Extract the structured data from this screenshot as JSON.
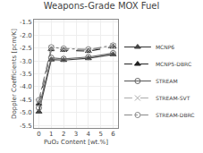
{
  "chart_data": {
    "type": "line",
    "title": "Weapons-Grade MOX Fuel",
    "xlabel": "PuO₂ Content [wt.%]",
    "ylabel": "Doppler Coefficients [pcm/K]",
    "x": [
      0,
      1,
      2,
      4,
      6
    ],
    "series": [
      {
        "name": "MCNP6",
        "color": "#444444",
        "marker": "triangle-up",
        "line_style": "solid",
        "values": [
          -4.97,
          -2.95,
          -2.97,
          -2.9,
          -2.75
        ]
      },
      {
        "name": "MCNP5-DBRC",
        "color": "#222222",
        "marker": "triangle-up",
        "line_style": "dash",
        "values": [
          -4.65,
          -2.55,
          -2.58,
          -2.62,
          -2.45
        ]
      },
      {
        "name": "STREAM",
        "color": "#666666",
        "marker": "circle-open",
        "line_style": "solid",
        "values": [
          -4.82,
          -2.88,
          -2.92,
          -2.85,
          -2.7
        ]
      },
      {
        "name": "STREAM-SVT",
        "color": "#aaaaaa",
        "marker": "x",
        "line_style": "dash",
        "values": [
          -4.58,
          -2.5,
          -2.55,
          -2.58,
          -2.42
        ]
      },
      {
        "name": "STREAM-DBRC",
        "color": "#888888",
        "marker": "circle-open",
        "line_style": "dashdot",
        "values": [
          -4.52,
          -2.47,
          -2.52,
          -2.55,
          -2.4
        ]
      }
    ],
    "xlim": [
      -0.4,
      6.4
    ],
    "xticks": [
      0,
      1,
      2,
      3,
      4,
      5,
      6
    ],
    "ylim": [
      -5.6,
      -1.4
    ],
    "yticks": [
      -5.5,
      {
        "value": -5,
        "label": "-5.0"
      },
      -4.5,
      {
        "value": -4,
        "label": "-4.0"
      },
      -3.5,
      {
        "value": -3,
        "label": "-3.0"
      },
      -2.5,
      {
        "value": -2,
        "label": "-2.0"
      },
      -1.5
    ],
    "grid": true,
    "legend": "lower right"
  }
}
